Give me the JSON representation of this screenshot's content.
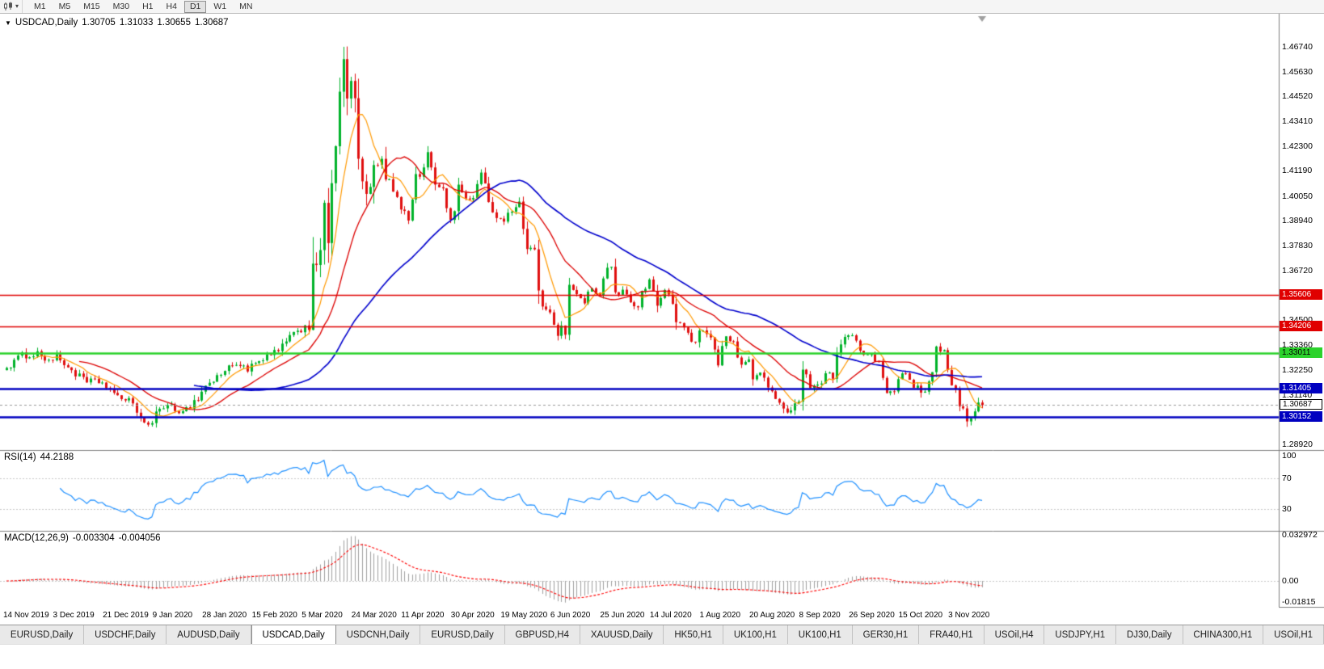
{
  "icons": {
    "dropdown_glyph": "▾",
    "title_marker_glyph": "▼"
  },
  "toolbar": {
    "timeframes": [
      "M1",
      "M5",
      "M15",
      "M30",
      "H1",
      "H4",
      "D1",
      "W1",
      "MN"
    ],
    "active_timeframe": "D1"
  },
  "chart": {
    "title": {
      "symbol": "USDCAD,Daily",
      "open": "1.30705",
      "high": "1.31033",
      "low": "1.30655",
      "close": "1.30687"
    },
    "y_axis_labels": [
      "1.46740",
      "1.45630",
      "1.44520",
      "1.43410",
      "1.42300",
      "1.41190",
      "1.40050",
      "1.38940",
      "1.37830",
      "1.36720",
      "1.34500",
      "1.33360",
      "1.32250",
      "1.31140",
      "1.28920"
    ],
    "h_lines": [
      {
        "price": 1.35606,
        "label": "1.35606",
        "color": "#e00000",
        "width": 1.6
      },
      {
        "price": 1.34206,
        "label": "1.34206",
        "color": "#e00000",
        "width": 1.6
      },
      {
        "price": 1.33011,
        "label": "1.33011",
        "color": "#2bd22b",
        "width": 2.4,
        "text_color": "#000"
      },
      {
        "price": 1.31405,
        "label": "1.31405",
        "color": "#0000c0",
        "width": 2.4
      },
      {
        "price": 1.30152,
        "label": "1.30152",
        "color": "#0000c0",
        "width": 2.4
      }
    ],
    "current_price": {
      "value": 1.30687,
      "label": "1.30687"
    },
    "x_axis_labels": [
      "14 Nov 2019",
      "3 Dec 2019",
      "21 Dec 2019",
      "9 Jan 2020",
      "28 Jan 2020",
      "15 Feb 2020",
      "5 Mar 2020",
      "24 Mar 2020",
      "11 Apr 2020",
      "30 Apr 2020",
      "19 May 2020",
      "6 Jun 2020",
      "25 Jun 2020",
      "14 Jul 2020",
      "1 Aug 2020",
      "20 Aug 2020",
      "8 Sep 2020",
      "26 Sep 2020",
      "15 Oct 2020",
      "3 Nov 2020"
    ]
  },
  "rsi": {
    "label": "RSI(14)",
    "value": "44.2188",
    "axis_labels": [
      "100",
      "70",
      "30"
    ],
    "levels": [
      70,
      30
    ]
  },
  "macd": {
    "label": "MACD(12,26,9)",
    "main_value": "-0.003304",
    "signal_value": "-0.004056",
    "axis_labels": [
      "0.032972",
      "0.00",
      "-0.01815"
    ]
  },
  "tabs": {
    "items": [
      "EURUSD,Daily",
      "USDCHF,Daily",
      "AUDUSD,Daily",
      "USDCAD,Daily",
      "USDCNH,Daily",
      "EURUSD,Daily",
      "GBPUSD,H4",
      "XAUUSD,Daily",
      "HK50,H1",
      "UK100,H1",
      "UK100,H1",
      "GER30,H1",
      "FRA40,H1",
      "USOil,H4",
      "USDJPY,H1",
      "DJ30,Daily",
      "CHINA300,H1",
      "USOil,H1"
    ],
    "active_index": 3
  },
  "chart_data": {
    "type": "candlestick",
    "symbol": "USDCAD",
    "timeframe": "Daily",
    "bars": 256,
    "label_every_bars": 13,
    "main_range": {
      "max": 1.4822,
      "min": 1.2867
    },
    "rsi_range": {
      "max": 107,
      "min": 2
    },
    "macd_range": {
      "max": 0.03586,
      "min": -0.01852
    },
    "ma_periods": {
      "fast": 8,
      "mid": 20,
      "slow": 50
    },
    "rsi_period": 14,
    "macd_periods": [
      12,
      26,
      9
    ],
    "colors": {
      "candle_up": "#00b22a",
      "candle_down": "#e01010",
      "ma_fast": "#ff9900",
      "ma_mid": "#dd0000",
      "ma_slow": "#0000cd",
      "rsi_line": "#1e90ff",
      "macd_hist": "#a0a0a0",
      "macd_signal": "#ff0000",
      "grid_dotted": "#c8c8c8",
      "separator": "#808080",
      "bid_line": "#9a9a9a"
    },
    "anchors": [
      [
        0,
        1.3235
      ],
      [
        2,
        1.3265
      ],
      [
        4,
        1.329
      ],
      [
        8,
        1.33
      ],
      [
        11,
        1.327
      ],
      [
        13,
        1.328
      ],
      [
        15,
        1.3255
      ],
      [
        17,
        1.3225
      ],
      [
        19,
        1.3195
      ],
      [
        21,
        1.317
      ],
      [
        24,
        1.3175
      ],
      [
        26,
        1.3155
      ],
      [
        28,
        1.312
      ],
      [
        30,
        1.308
      ],
      [
        32,
        1.311
      ],
      [
        34,
        1.304
      ],
      [
        36,
        1.2975
      ],
      [
        38,
        1.299
      ],
      [
        39,
        1.3055
      ],
      [
        41,
        1.304
      ],
      [
        43,
        1.3065
      ],
      [
        45,
        1.3045
      ],
      [
        47,
        1.305
      ],
      [
        50,
        1.31
      ],
      [
        52,
        1.3155
      ],
      [
        54,
        1.318
      ],
      [
        56,
        1.321
      ],
      [
        58,
        1.3235
      ],
      [
        60,
        1.326
      ],
      [
        63,
        1.323
      ],
      [
        65,
        1.325
      ],
      [
        67,
        1.327
      ],
      [
        69,
        1.329
      ],
      [
        71,
        1.332
      ],
      [
        73,
        1.335
      ],
      [
        76,
        1.34
      ],
      [
        78,
        1.342
      ],
      [
        79,
        1.343
      ],
      [
        80,
        1.372
      ],
      [
        81,
        1.373
      ],
      [
        82,
        1.3745
      ],
      [
        83,
        1.393
      ],
      [
        84,
        1.381
      ],
      [
        85,
        1.402
      ],
      [
        86,
        1.425
      ],
      [
        87,
        1.45
      ],
      [
        88,
        1.464
      ],
      [
        89,
        1.443
      ],
      [
        90,
        1.448
      ],
      [
        91,
        1.444
      ],
      [
        92,
        1.418
      ],
      [
        93,
        1.405
      ],
      [
        94,
        1.399
      ],
      [
        95,
        1.407
      ],
      [
        97,
        1.415
      ],
      [
        98,
        1.413
      ],
      [
        100,
        1.405
      ],
      [
        103,
        1.396
      ],
      [
        105,
        1.389
      ],
      [
        107,
        1.409
      ],
      [
        109,
        1.412
      ],
      [
        110,
        1.421
      ],
      [
        112,
        1.407
      ],
      [
        114,
        1.403
      ],
      [
        116,
        1.389
      ],
      [
        117,
        1.394
      ],
      [
        118,
        1.407
      ],
      [
        120,
        1.398
      ],
      [
        122,
        1.4
      ],
      [
        124,
        1.411
      ],
      [
        125,
        1.406
      ],
      [
        127,
        1.392
      ],
      [
        130,
        1.389
      ],
      [
        132,
        1.394
      ],
      [
        134,
        1.398
      ],
      [
        136,
        1.376
      ],
      [
        138,
        1.378
      ],
      [
        139,
        1.357
      ],
      [
        140,
        1.352
      ],
      [
        142,
        1.349
      ],
      [
        143,
        1.342
      ],
      [
        144,
        1.337
      ],
      [
        145,
        1.341
      ],
      [
        146,
        1.339
      ],
      [
        147,
        1.362
      ],
      [
        148,
        1.359
      ],
      [
        149,
        1.356
      ],
      [
        151,
        1.354
      ],
      [
        153,
        1.36
      ],
      [
        155,
        1.356
      ],
      [
        156,
        1.363
      ],
      [
        157,
        1.368
      ],
      [
        158,
        1.368
      ],
      [
        159,
        1.358
      ],
      [
        161,
        1.357
      ],
      [
        163,
        1.354
      ],
      [
        165,
        1.351
      ],
      [
        166,
        1.359
      ],
      [
        168,
        1.362
      ],
      [
        169,
        1.358
      ],
      [
        170,
        1.351
      ],
      [
        172,
        1.358
      ],
      [
        174,
        1.353
      ],
      [
        175,
        1.345
      ],
      [
        177,
        1.341
      ],
      [
        179,
        1.335
      ],
      [
        180,
        1.334
      ],
      [
        181,
        1.341
      ],
      [
        182,
        1.341
      ],
      [
        184,
        1.338
      ],
      [
        186,
        1.326
      ],
      [
        188,
        1.338
      ],
      [
        190,
        1.334
      ],
      [
        192,
        1.325
      ],
      [
        194,
        1.3265
      ],
      [
        195,
        1.318
      ],
      [
        197,
        1.322
      ],
      [
        199,
        1.316
      ],
      [
        201,
        1.309
      ],
      [
        203,
        1.304
      ],
      [
        204,
        1.303
      ],
      [
        205,
        1.306
      ],
      [
        207,
        1.31
      ],
      [
        208,
        1.323
      ],
      [
        210,
        1.316
      ],
      [
        212,
        1.316
      ],
      [
        214,
        1.32
      ],
      [
        216,
        1.32
      ],
      [
        217,
        1.331
      ],
      [
        219,
        1.338
      ],
      [
        220,
        1.337
      ],
      [
        221,
        1.338
      ],
      [
        223,
        1.332
      ],
      [
        224,
        1.329
      ],
      [
        226,
        1.328
      ],
      [
        228,
        1.3265
      ],
      [
        230,
        1.312
      ],
      [
        232,
        1.314
      ],
      [
        234,
        1.321
      ],
      [
        236,
        1.318
      ],
      [
        238,
        1.314
      ],
      [
        240,
        1.312
      ],
      [
        242,
        1.32
      ],
      [
        243,
        1.332
      ],
      [
        245,
        1.332
      ],
      [
        246,
        1.322
      ],
      [
        247,
        1.315
      ],
      [
        248,
        1.314
      ],
      [
        249,
        1.305
      ],
      [
        250,
        1.306
      ],
      [
        251,
        1.298
      ],
      [
        252,
        1.302
      ],
      [
        253,
        1.304
      ],
      [
        254,
        1.307
      ],
      [
        255,
        1.30687
      ]
    ]
  }
}
